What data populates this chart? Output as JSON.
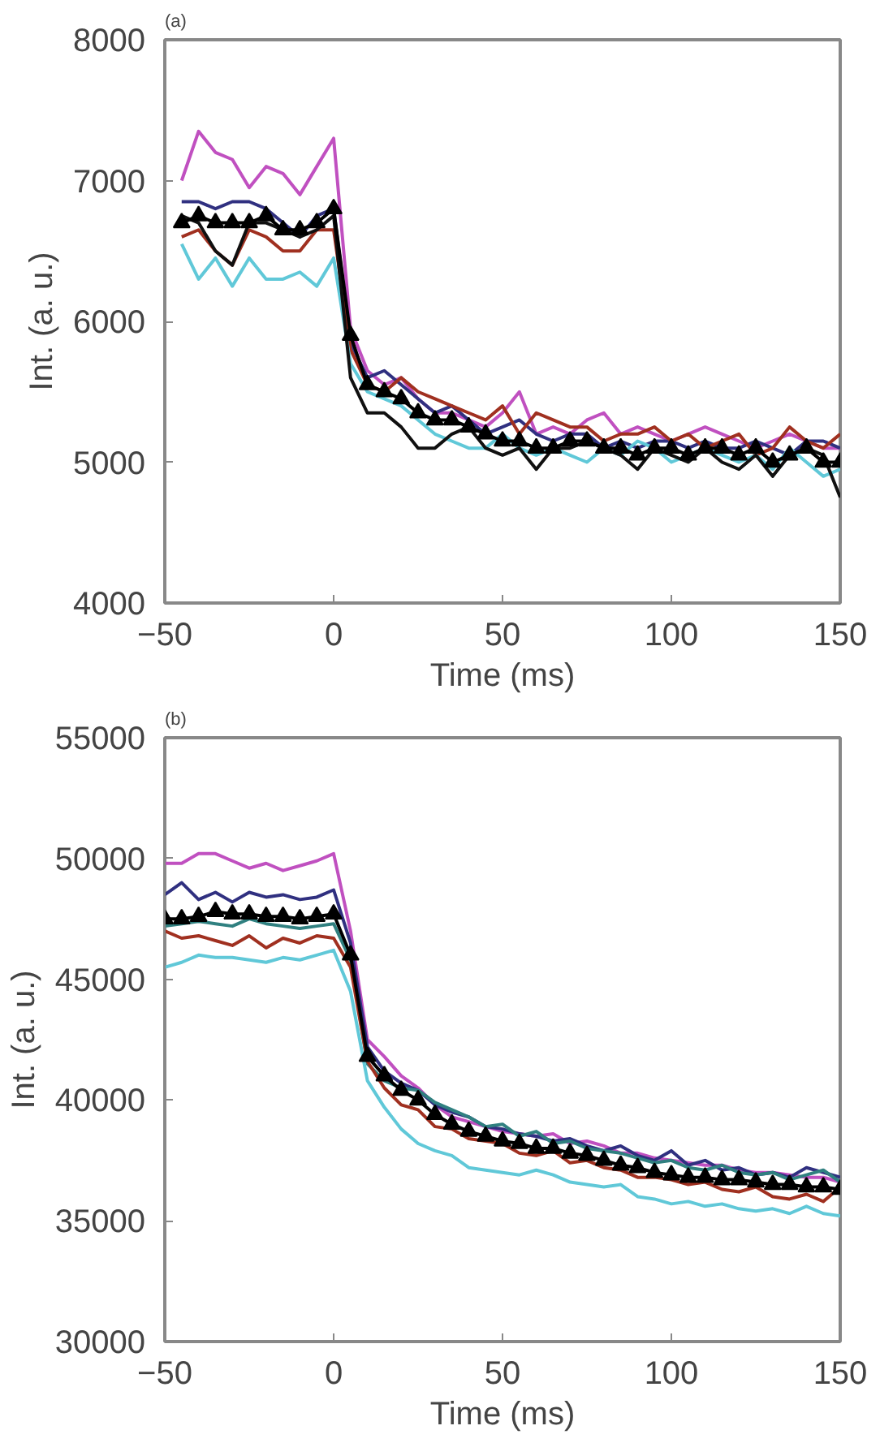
{
  "chart_data": [
    {
      "type": "line",
      "title": "(a)",
      "xlabel": "Time (ms)",
      "ylabel": "Int. (a. u.)",
      "xlim": [
        -50,
        150
      ],
      "xticks": [
        -50,
        0,
        50,
        100,
        150
      ],
      "ylim": [
        4000,
        8000
      ],
      "yticks": [
        4000,
        5000,
        6000,
        7000,
        8000
      ],
      "grid": false,
      "x": [
        -45,
        -40,
        -35,
        -30,
        -25,
        -20,
        -15,
        -10,
        -5,
        0,
        5,
        10,
        15,
        20,
        25,
        30,
        35,
        40,
        45,
        50,
        55,
        60,
        65,
        70,
        75,
        80,
        85,
        90,
        95,
        100,
        105,
        110,
        115,
        120,
        125,
        130,
        135,
        140,
        145,
        150
      ],
      "series": [
        {
          "color": "#c050c0",
          "marker": "none",
          "values": [
            7000,
            7350,
            7200,
            7150,
            6950,
            7100,
            7050,
            6900,
            7100,
            7300,
            5950,
            5650,
            5550,
            5600,
            5450,
            5350,
            5350,
            5300,
            5250,
            5350,
            5500,
            5200,
            5250,
            5200,
            5300,
            5350,
            5200,
            5250,
            5200,
            5150,
            5200,
            5250,
            5200,
            5150,
            5100,
            5150,
            5200,
            5150,
            5100,
            5100
          ]
        },
        {
          "color": "#303080",
          "marker": "none",
          "values": [
            6850,
            6850,
            6800,
            6850,
            6850,
            6800,
            6700,
            6600,
            6750,
            6800,
            5850,
            5600,
            5650,
            5550,
            5450,
            5350,
            5400,
            5300,
            5200,
            5250,
            5300,
            5200,
            5150,
            5200,
            5200,
            5100,
            5150,
            5100,
            5150,
            5150,
            5100,
            5150,
            5100,
            5100,
            5150,
            5100,
            5050,
            5150,
            5150,
            5100
          ]
        },
        {
          "color": "#a03020",
          "marker": "none",
          "values": [
            6600,
            6650,
            6500,
            6400,
            6650,
            6600,
            6500,
            6500,
            6650,
            6650,
            5800,
            5550,
            5500,
            5600,
            5500,
            5450,
            5400,
            5350,
            5300,
            5400,
            5200,
            5350,
            5300,
            5250,
            5250,
            5150,
            5200,
            5200,
            5250,
            5150,
            5200,
            5100,
            5150,
            5200,
            5050,
            5100,
            5250,
            5150,
            5100,
            5200
          ]
        },
        {
          "color": "#60c8d8",
          "marker": "none",
          "values": [
            6550,
            6300,
            6450,
            6250,
            6450,
            6300,
            6300,
            6350,
            6250,
            6450,
            5700,
            5500,
            5450,
            5400,
            5300,
            5200,
            5150,
            5100,
            5100,
            5200,
            5100,
            5050,
            5100,
            5050,
            5000,
            5100,
            5050,
            5150,
            5100,
            5000,
            5050,
            5100,
            5050,
            5000,
            5050,
            4950,
            5100,
            5000,
            4900,
            4950
          ]
        },
        {
          "color": "#101010",
          "marker": "none",
          "values": [
            6750,
            6700,
            6500,
            6400,
            6700,
            6700,
            6650,
            6600,
            6650,
            6750,
            5600,
            5350,
            5350,
            5250,
            5100,
            5100,
            5200,
            5250,
            5100,
            5050,
            5100,
            4950,
            5100,
            5100,
            5150,
            5100,
            5050,
            4950,
            5100,
            5050,
            5000,
            5100,
            5000,
            4950,
            5050,
            4900,
            5050,
            5100,
            5050,
            4750
          ]
        },
        {
          "color": "#000000",
          "marker": "triangle",
          "values": [
            6700,
            6750,
            6700,
            6700,
            6700,
            6750,
            6650,
            6650,
            6700,
            6800,
            5900,
            5550,
            5500,
            5450,
            5350,
            5300,
            5300,
            5250,
            5200,
            5150,
            5150,
            5100,
            5100,
            5150,
            5150,
            5100,
            5100,
            5050,
            5100,
            5100,
            5050,
            5100,
            5100,
            5050,
            5100,
            5000,
            5050,
            5100,
            5000,
            5000
          ]
        }
      ]
    },
    {
      "type": "line",
      "title": "(b)",
      "xlabel": "Time (ms)",
      "ylabel": "Int. (a. u.)",
      "xlim": [
        -50,
        150
      ],
      "xticks": [
        -50,
        0,
        50,
        100,
        150
      ],
      "ylim": [
        30000,
        55000
      ],
      "yticks": [
        30000,
        35000,
        40000,
        45000,
        50000,
        55000
      ],
      "grid": false,
      "x": [
        -50,
        -45,
        -40,
        -35,
        -30,
        -25,
        -20,
        -15,
        -10,
        -5,
        0,
        5,
        10,
        15,
        20,
        25,
        30,
        35,
        40,
        45,
        50,
        55,
        60,
        65,
        70,
        75,
        80,
        85,
        90,
        95,
        100,
        105,
        110,
        115,
        120,
        125,
        130,
        135,
        140,
        145,
        150
      ],
      "series": [
        {
          "color": "#c050c0",
          "marker": "none",
          "values": [
            49800,
            49800,
            50200,
            50200,
            49900,
            49600,
            49800,
            49500,
            49700,
            49900,
            50200,
            47000,
            42500,
            41800,
            41000,
            40500,
            39800,
            39300,
            39100,
            38900,
            38700,
            38600,
            38500,
            38600,
            38200,
            38300,
            38100,
            37800,
            37800,
            37600,
            37500,
            37400,
            37300,
            37300,
            37100,
            37000,
            37000,
            36900,
            36800,
            36800,
            36600
          ]
        },
        {
          "color": "#303080",
          "marker": "none",
          "values": [
            48500,
            49000,
            48300,
            48600,
            48200,
            48600,
            48400,
            48500,
            48300,
            48400,
            48700,
            46500,
            42200,
            41200,
            40700,
            40400,
            39800,
            39500,
            39300,
            38900,
            38800,
            38600,
            38500,
            38300,
            38400,
            38100,
            37900,
            38100,
            37700,
            37500,
            37900,
            37300,
            37500,
            37100,
            37200,
            36900,
            37000,
            36800,
            37200,
            37000,
            36800
          ]
        },
        {
          "color": "#308080",
          "marker": "none",
          "values": [
            47200,
            47300,
            47400,
            47300,
            47200,
            47500,
            47300,
            47200,
            47100,
            47200,
            47300,
            45800,
            41500,
            40800,
            40500,
            40400,
            39900,
            39600,
            39300,
            38900,
            39000,
            38500,
            38700,
            38200,
            38300,
            38000,
            37900,
            37800,
            37600,
            37400,
            37500,
            37200,
            37100,
            37300,
            37000,
            36900,
            37000,
            36700,
            36900,
            37100,
            36600
          ]
        },
        {
          "color": "#a03020",
          "marker": "none",
          "values": [
            47000,
            46700,
            46800,
            46600,
            46400,
            46800,
            46300,
            46700,
            46500,
            46800,
            46700,
            45500,
            41600,
            40500,
            39800,
            39600,
            38900,
            38800,
            38400,
            38300,
            38200,
            37800,
            37700,
            37900,
            37400,
            37500,
            37200,
            37100,
            36800,
            36800,
            36700,
            36500,
            36600,
            36300,
            36200,
            36400,
            36000,
            35900,
            36100,
            35800,
            36400
          ]
        },
        {
          "color": "#60c8d8",
          "marker": "none",
          "values": [
            45500,
            45700,
            46000,
            45900,
            45900,
            45800,
            45700,
            45900,
            45800,
            46000,
            46200,
            44500,
            40800,
            39700,
            38800,
            38200,
            37900,
            37700,
            37200,
            37100,
            37000,
            36900,
            37100,
            36900,
            36600,
            36500,
            36400,
            36500,
            36000,
            35900,
            35700,
            35800,
            35600,
            35700,
            35500,
            35400,
            35500,
            35300,
            35600,
            35300,
            35200
          ]
        },
        {
          "color": "#000000",
          "marker": "triangle",
          "values": [
            47500,
            47500,
            47600,
            47800,
            47700,
            47700,
            47600,
            47600,
            47500,
            47600,
            47700,
            46000,
            41800,
            41000,
            40400,
            40000,
            39400,
            39000,
            38700,
            38500,
            38300,
            38200,
            38000,
            38000,
            37800,
            37700,
            37500,
            37300,
            37200,
            37000,
            36900,
            36800,
            36800,
            36700,
            36700,
            36600,
            36500,
            36500,
            36400,
            36400,
            36300
          ]
        }
      ]
    }
  ]
}
